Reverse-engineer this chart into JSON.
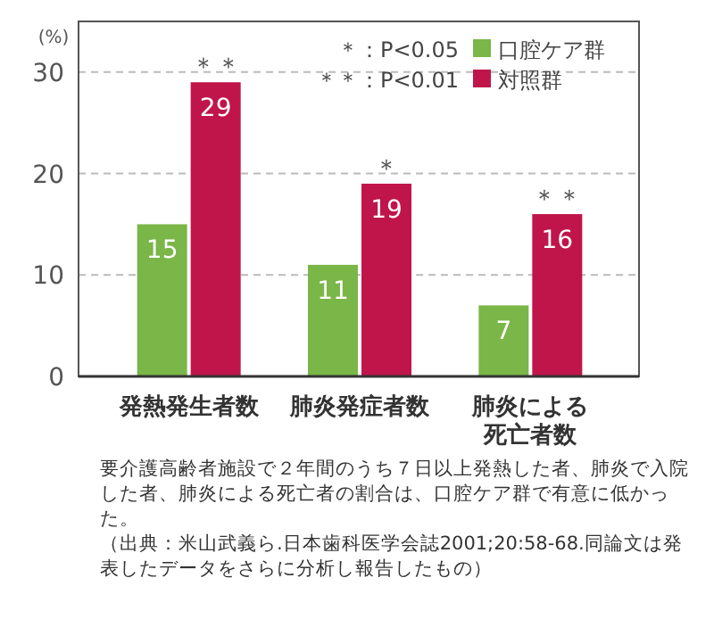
{
  "chart_data": {
    "type": "bar",
    "ylabel": "(%)",
    "categories": [
      "発熱発生者数",
      "肺炎発症者数",
      "肺炎による死亡者数"
    ],
    "series": [
      {
        "name": "口腔ケア群",
        "color": "#7ab648",
        "values": [
          15,
          11,
          7
        ]
      },
      {
        "name": "対照群",
        "color": "#c0154a",
        "values": [
          29,
          19,
          16
        ]
      }
    ],
    "ylim": [
      0,
      35
    ],
    "yticks": [
      0,
      10,
      20,
      30
    ],
    "grid": "y",
    "legend": "top right",
    "data_labels": true,
    "annotations": [
      {
        "text": "＊＊",
        "x": "発熱発生者数",
        "y": 29
      },
      {
        "text": "＊",
        "x": "肺炎発症者数",
        "y": 19
      },
      {
        "text": "＊＊",
        "x": "肺炎による死亡者数",
        "y": 16
      },
      "＊：P<0.05",
      "＊＊：P<0.01",
      "要介護高齢者施設で２年間のうち７日以上発熱した者、肺炎で入院した者、肺炎による死亡者の割合は、口腔ケア群で有意に低かった。",
      "（出典：米山武義ら.日本歯科医学会誌2001;20:58-68.同論文は発表したデータをさらに分析し報告したもの）"
    ]
  }
}
